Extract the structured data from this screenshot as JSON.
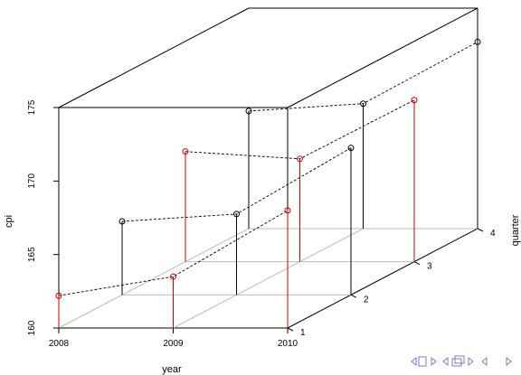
{
  "chart_data": {
    "type": "scatter3d",
    "xlabel": "year",
    "ylabel": "quarter",
    "zlabel": "cpi",
    "x_ticks": [
      "2008",
      "2009",
      "2010"
    ],
    "y_ticks": [
      "1",
      "2",
      "3",
      "4"
    ],
    "z_ticks": [
      "160",
      "165",
      "170",
      "175"
    ],
    "xlim": [
      2008,
      2010
    ],
    "ylim": [
      1,
      4
    ],
    "zlim": [
      160,
      175
    ],
    "points": [
      {
        "year": 2008,
        "quarter": 1,
        "cpi": 162.2
      },
      {
        "year": 2008,
        "quarter": 2,
        "cpi": 165.0
      },
      {
        "year": 2008,
        "quarter": 3,
        "cpi": 167.5
      },
      {
        "year": 2008,
        "quarter": 4,
        "cpi": 168.0
      },
      {
        "year": 2009,
        "quarter": 1,
        "cpi": 163.5
      },
      {
        "year": 2009,
        "quarter": 2,
        "cpi": 165.5
      },
      {
        "year": 2009,
        "quarter": 3,
        "cpi": 167.0
      },
      {
        "year": 2009,
        "quarter": 4,
        "cpi": 168.5
      },
      {
        "year": 2010,
        "quarter": 1,
        "cpi": 168.0
      },
      {
        "year": 2010,
        "quarter": 2,
        "cpi": 170.0
      },
      {
        "year": 2010,
        "quarter": 3,
        "cpi": 171.0
      },
      {
        "year": 2010,
        "quarter": 4,
        "cpi": 172.7
      }
    ],
    "colors": {
      "highlight": "#cc0000",
      "normal": "#000000",
      "floor_grid": "#bbbbbb"
    },
    "grid": true,
    "lines": "dashed lines connecting points of each quarter across years"
  },
  "nav_icons": [
    "nav-first-icon",
    "nav-prev-icon",
    "nav-frame-icon",
    "nav-next-icon"
  ]
}
